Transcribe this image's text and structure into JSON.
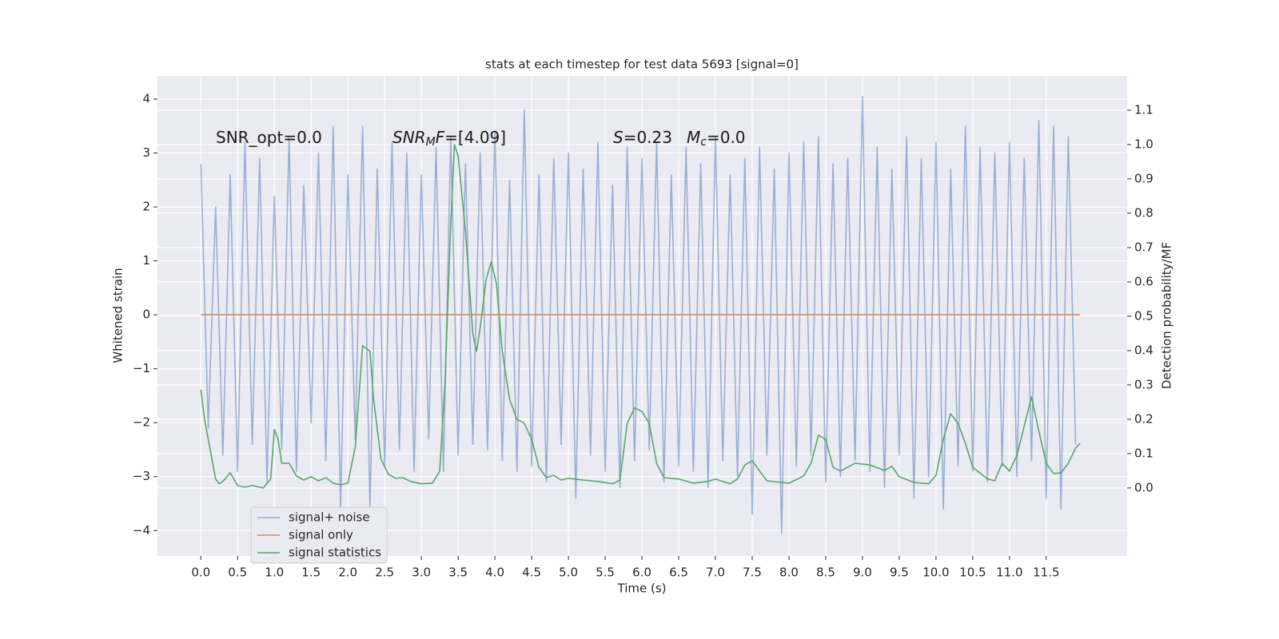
{
  "chart_data": {
    "type": "line",
    "title": "stats at each timestep for test data 5693 [signal=0]",
    "xlabel": "Time (s)",
    "ylabel": "Whitened strain",
    "y2label": "Detection probability/MF",
    "xlim": [
      -0.59,
      12.6
    ],
    "ylim": [
      -4.47,
      4.43
    ],
    "y2lim": [
      -0.198,
      1.2
    ],
    "grid": true,
    "legend": "lower left",
    "xticks": [
      {
        "value": 0,
        "label": "0.0"
      },
      {
        "value": 0.5,
        "label": "0.5"
      },
      {
        "value": 1,
        "label": "1.0"
      },
      {
        "value": 1.5,
        "label": "1.5"
      },
      {
        "value": 2,
        "label": "2.0"
      },
      {
        "value": 2.5,
        "label": "2.5"
      },
      {
        "value": 3,
        "label": "3.0"
      },
      {
        "value": 3.5,
        "label": "3.5"
      },
      {
        "value": 4,
        "label": "4.0"
      },
      {
        "value": 4.5,
        "label": "4.5"
      },
      {
        "value": 5,
        "label": "5.0"
      },
      {
        "value": 5.5,
        "label": "5.5"
      },
      {
        "value": 6,
        "label": "6.0"
      },
      {
        "value": 6.5,
        "label": "6.5"
      },
      {
        "value": 7,
        "label": "7.0"
      },
      {
        "value": 7.5,
        "label": "7.5"
      },
      {
        "value": 8,
        "label": "8.0"
      },
      {
        "value": 8.5,
        "label": "8.5"
      },
      {
        "value": 9,
        "label": "9.0"
      },
      {
        "value": 9.5,
        "label": "9.5"
      },
      {
        "value": 10,
        "label": "10.0"
      },
      {
        "value": 10.5,
        "label": "10.5"
      },
      {
        "value": 11,
        "label": "11.0"
      },
      {
        "value": 11.5,
        "label": "11.5"
      }
    ],
    "yticks": [
      {
        "value": -4,
        "label": "−4"
      },
      {
        "value": -3,
        "label": "−3"
      },
      {
        "value": -2,
        "label": "−2"
      },
      {
        "value": -1,
        "label": "−1"
      },
      0,
      1,
      2,
      3,
      4
    ],
    "y2ticks": [
      {
        "value": 0,
        "label": "0.0"
      },
      {
        "value": 0.1,
        "label": "0.1"
      },
      {
        "value": 0.2,
        "label": "0.2"
      },
      {
        "value": 0.3,
        "label": "0.3"
      },
      {
        "value": 0.4,
        "label": "0.4"
      },
      {
        "value": 0.5,
        "label": "0.5"
      },
      {
        "value": 0.6,
        "label": "0.6"
      },
      {
        "value": 0.7,
        "label": "0.7"
      },
      {
        "value": 0.8,
        "label": "0.8"
      },
      {
        "value": 0.9,
        "label": "0.9"
      },
      {
        "value": 1,
        "label": "1.0"
      },
      {
        "value": 1.1,
        "label": "1.1"
      }
    ],
    "annotations": [
      [
        {
          "text": "SNR_opt=0.0"
        }
      ],
      [
        {
          "text": "SNR",
          "italic": true
        },
        {
          "text": "M",
          "italic": true,
          "sub": true
        },
        {
          "text": "F",
          "italic": true
        },
        {
          "text": "=[4.09]"
        }
      ],
      [
        {
          "text": "S",
          "italic": true
        },
        {
          "text": "=0.23"
        }
      ],
      [
        {
          "text": "M",
          "italic": true
        },
        {
          "text": "c",
          "italic": true,
          "sub": true
        },
        {
          "text": "=0.0"
        }
      ]
    ],
    "series": [
      {
        "name": "signal+ noise",
        "color": "#4c72b0",
        "alpha": 0.5,
        "x": [
          0,
          0.1,
          0.2,
          0.3,
          0.4,
          0.5,
          0.6,
          0.7,
          0.8,
          0.9,
          1,
          1.1,
          1.2,
          1.3,
          1.4,
          1.5,
          1.6,
          1.7,
          1.8,
          1.9,
          2,
          2.1,
          2.2,
          2.3,
          2.4,
          2.5,
          2.6,
          2.7,
          2.8,
          2.9,
          3,
          3.1,
          3.2,
          3.3,
          3.4,
          3.5,
          3.6,
          3.7,
          3.8,
          3.9,
          4,
          4.1,
          4.2,
          4.3,
          4.4,
          4.5,
          4.6,
          4.7,
          4.8,
          4.9,
          5,
          5.1,
          5.2,
          5.3,
          5.4,
          5.5,
          5.6,
          5.7,
          5.8,
          5.9,
          6,
          6.1,
          6.2,
          6.3,
          6.4,
          6.5,
          6.6,
          6.7,
          6.8,
          6.9,
          7,
          7.1,
          7.2,
          7.3,
          7.4,
          7.5,
          7.6,
          7.7,
          7.8,
          7.9,
          8,
          8.1,
          8.2,
          8.3,
          8.4,
          8.5,
          8.6,
          8.7,
          8.8,
          8.9,
          9,
          9.1,
          9.2,
          9.3,
          9.4,
          9.5,
          9.6,
          9.7,
          9.8,
          9.9,
          10,
          10.1,
          10.2,
          10.3,
          10.4,
          10.5,
          10.6,
          10.7,
          10.8,
          10.9,
          11,
          11.1,
          11.2,
          11.3,
          11.4,
          11.5,
          11.6,
          11.7,
          11.8,
          11.9
        ],
        "values": [
          2.8,
          -2.1,
          2.0,
          -2.6,
          2.6,
          -2.9,
          3.2,
          -2.4,
          2.9,
          -3.1,
          2.2,
          -2.5,
          3.3,
          -2.9,
          2.4,
          -2.0,
          3.0,
          -2.7,
          3.5,
          -3.6,
          2.6,
          -2.3,
          3.5,
          -3.6,
          2.7,
          -2.8,
          3.2,
          -2.5,
          3.0,
          -2.9,
          2.6,
          -2.3,
          3.1,
          -2.9,
          3.3,
          -2.6,
          2.8,
          -2.4,
          3.0,
          -2.5,
          3.4,
          -2.7,
          2.5,
          -2.9,
          3.8,
          -2.8,
          2.6,
          -3.1,
          2.9,
          -2.4,
          3.0,
          -3.4,
          2.7,
          -2.6,
          3.2,
          -2.9,
          2.4,
          -3.2,
          3.1,
          -2.7,
          2.9,
          -2.5,
          3.2,
          -3.1,
          2.6,
          -2.8,
          3.1,
          -2.9,
          2.8,
          -3.2,
          3.3,
          -2.7,
          2.6,
          -3.0,
          2.9,
          -3.7,
          3.1,
          -2.6,
          2.7,
          -4.05,
          3.0,
          -2.8,
          3.2,
          -2.6,
          3.3,
          -3.1,
          2.8,
          -3.0,
          2.9,
          -2.7,
          4.05,
          -2.9,
          3.1,
          -3.2,
          2.7,
          -2.6,
          3.3,
          -3.4,
          2.9,
          -3.0,
          3.2,
          -3.6,
          2.7,
          -2.8,
          3.5,
          -2.9,
          3.1,
          -3.1,
          3.0,
          -2.8,
          3.2,
          -3.0,
          2.9,
          -2.7,
          3.6,
          -3.4,
          3.5,
          -3.6,
          3.3,
          -2.4
        ]
      },
      {
        "name": "signal only",
        "color": "#dd8452",
        "x": [
          0,
          11.96
        ],
        "values": [
          0,
          0
        ]
      },
      {
        "name": "signal statistics",
        "color": "#55a868",
        "axis": "y2",
        "x": [
          0,
          0.05,
          0.15,
          0.2,
          0.25,
          0.3,
          0.4,
          0.5,
          0.6,
          0.7,
          0.85,
          0.95,
          1,
          1.05,
          1.1,
          1.2,
          1.3,
          1.4,
          1.5,
          1.6,
          1.7,
          1.8,
          1.9,
          2,
          2.1,
          2.2,
          2.3,
          2.35,
          2.45,
          2.55,
          2.65,
          2.75,
          2.85,
          3,
          3.15,
          3.25,
          3.32,
          3.4,
          3.45,
          3.5,
          3.6,
          3.7,
          3.75,
          3.8,
          3.88,
          3.95,
          4.02,
          4.1,
          4.2,
          4.3,
          4.4,
          4.5,
          4.6,
          4.7,
          4.8,
          4.9,
          5,
          5.2,
          5.4,
          5.6,
          5.7,
          5.8,
          5.9,
          6,
          6.1,
          6.2,
          6.3,
          6.5,
          6.7,
          6.9,
          7,
          7.2,
          7.3,
          7.4,
          7.5,
          7.6,
          7.7,
          7.9,
          8,
          8.2,
          8.3,
          8.4,
          8.5,
          8.6,
          8.7,
          8.9,
          9.1,
          9.3,
          9.4,
          9.5,
          9.7,
          9.9,
          10,
          10.1,
          10.2,
          10.3,
          10.4,
          10.5,
          10.7,
          10.8,
          10.9,
          11,
          11.1,
          11.3,
          11.4,
          11.5,
          11.6,
          11.7,
          11.8,
          11.9,
          11.96
        ],
        "values": [
          0.286,
          0.2,
          0.084,
          0.026,
          0.012,
          0.019,
          0.044,
          0.007,
          0.002,
          0.007,
          0,
          0.026,
          0.17,
          0.142,
          0.072,
          0.072,
          0.035,
          0.023,
          0.033,
          0.021,
          0.03,
          0.014,
          0.009,
          0.014,
          0.119,
          0.414,
          0.398,
          0.258,
          0.084,
          0.04,
          0.028,
          0.03,
          0.019,
          0.012,
          0.014,
          0.049,
          0.305,
          0.77,
          1.0,
          0.967,
          0.747,
          0.449,
          0.398,
          0.467,
          0.607,
          0.658,
          0.595,
          0.398,
          0.258,
          0.2,
          0.188,
          0.142,
          0.06,
          0.03,
          0.037,
          0.023,
          0.028,
          0.023,
          0.019,
          0.012,
          0.023,
          0.188,
          0.233,
          0.223,
          0.188,
          0.072,
          0.03,
          0.026,
          0.014,
          0.019,
          0.026,
          0.012,
          0.026,
          0.067,
          0.079,
          0.049,
          0.021,
          0.016,
          0.014,
          0.035,
          0.072,
          0.153,
          0.142,
          0.06,
          0.049,
          0.072,
          0.067,
          0.051,
          0.063,
          0.033,
          0.016,
          0.012,
          0.037,
          0.142,
          0.216,
          0.188,
          0.13,
          0.06,
          0.026,
          0.021,
          0.072,
          0.049,
          0.095,
          0.265,
          0.165,
          0.072,
          0.042,
          0.044,
          0.072,
          0.116,
          0.13
        ]
      }
    ]
  }
}
